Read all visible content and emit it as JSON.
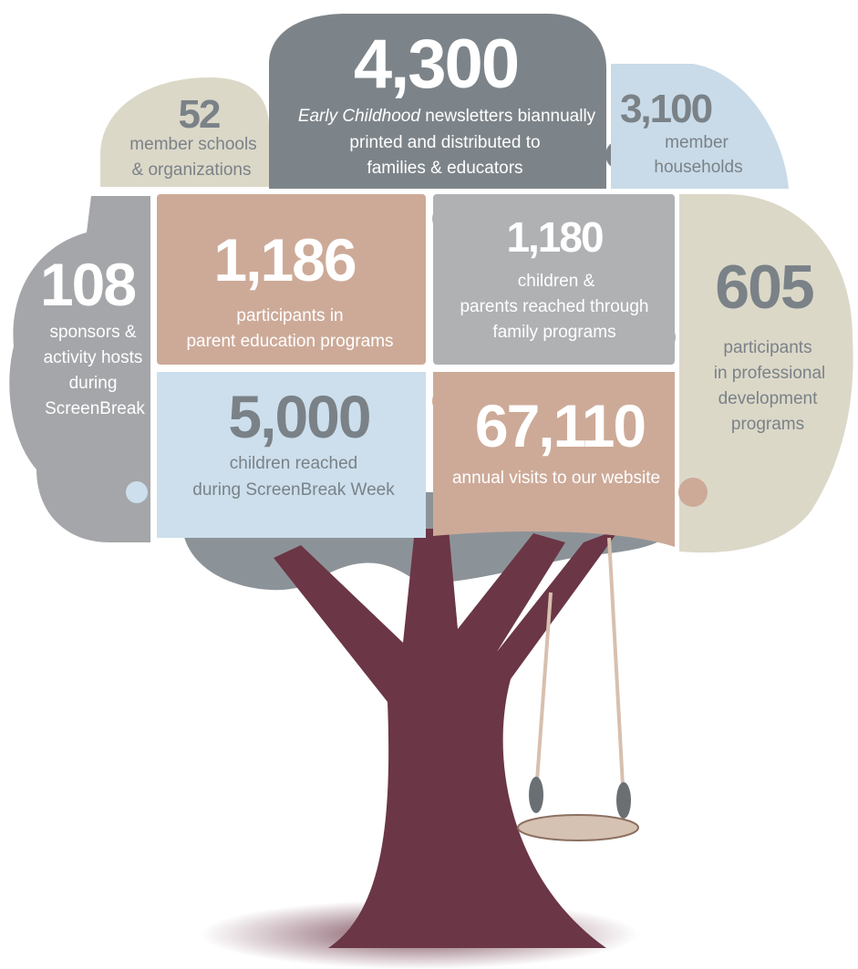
{
  "stats": [
    {
      "number": "4,300",
      "emphasis": "Early Childhood",
      "lines": [
        "newsletters biannually",
        "printed and distributed to",
        "families & educators"
      ]
    },
    {
      "number": "52",
      "lines": [
        "member schools",
        "& organizations"
      ]
    },
    {
      "number": "3,100",
      "lines": [
        "member",
        "households"
      ]
    },
    {
      "number": "108",
      "lines": [
        "sponsors &",
        "activity hosts",
        "during",
        "ScreenBreak"
      ]
    },
    {
      "number": "1,186",
      "lines": [
        "participants in",
        "parent education programs"
      ]
    },
    {
      "number": "1,180",
      "lines": [
        "children &",
        "parents reached through",
        "family programs"
      ]
    },
    {
      "number": "605",
      "lines": [
        "participants",
        "in professional",
        "development",
        "programs"
      ]
    },
    {
      "number": "5,000",
      "lines": [
        "children reached",
        "during ScreenBreak Week"
      ]
    },
    {
      "number": "67,110",
      "lines": [
        "annual visits to our website"
      ]
    }
  ]
}
